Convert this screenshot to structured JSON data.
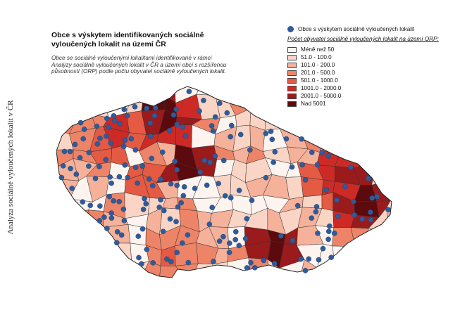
{
  "side_label": "Analyza sociálně vyloučených lokalit v ČR",
  "title": "Obce s výskytem identifikovaných sociálně vyloučených lokalit na území ČR",
  "subtitle": "Obce se sociálně vyloučenými lokalitami identifikované v rámci Analýzy sociálně vyloučených lokalit v ČR a území obcí s rozšířenou působností (ORP) podle počtu obyvatel sociálně vyloučených lokalit.",
  "legend": {
    "points_label": "Obce s výskytem sociálně vyloučených lokalit",
    "point_color": "#2f5b9a",
    "heading": "Počet obyvatel sociálně vyloučených lokalit na území ORP:",
    "classes": [
      {
        "label": "Méně než 50",
        "color": "#fdf3ef"
      },
      {
        "label": "51.0 - 100.0",
        "color": "#fad5c6"
      },
      {
        "label": "101.0 - 200.0",
        "color": "#f5b19a"
      },
      {
        "label": "201.0 - 500.0",
        "color": "#ee8467"
      },
      {
        "label": "501.0 - 1000.0",
        "color": "#e45a43"
      },
      {
        "label": "1001.0 - 2000.0",
        "color": "#cd2a26"
      },
      {
        "label": "2001.0 - 5000.0",
        "color": "#9b1a1c"
      },
      {
        "label": "Nad 5001",
        "color": "#5c0a0e"
      }
    ]
  }
}
